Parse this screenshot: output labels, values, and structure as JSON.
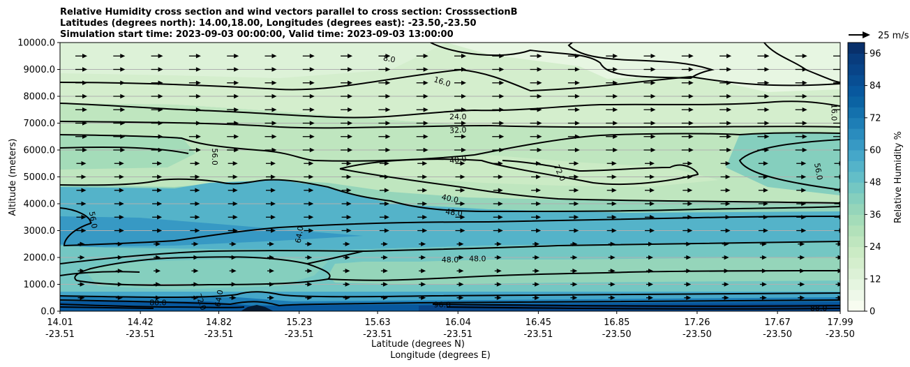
{
  "chart_data": {
    "type": "contour",
    "title_lines": [
      "Relative Humidity cross section and wind vectors parallel to cross section: CrosssectionB",
      "Latitudes (degrees north): 14.00,18.00, Longitudes (degrees east): -23.50,-23.50",
      "Simulation start time: 2023-09-03 00:00:00, Valid time: 2023-09-03 13:00:00"
    ],
    "ylabel": "Altitude (meters)",
    "xlabel_lat": "Latitude (degrees N)",
    "xlabel_lon": "Longitude (degrees E)",
    "ylim": [
      0,
      10000
    ],
    "y_ticks": [
      "0.0",
      "1000.0",
      "2000.0",
      "3000.0",
      "4000.0",
      "5000.0",
      "6000.0",
      "7000.0",
      "8000.0",
      "9000.0",
      "10000.0"
    ],
    "x_range": [
      14.01,
      17.99
    ],
    "x_ticks": [
      {
        "lat": "14.01",
        "lon": "-23.51"
      },
      {
        "lat": "14.42",
        "lon": "-23.51"
      },
      {
        "lat": "14.82",
        "lon": "-23.51"
      },
      {
        "lat": "15.23",
        "lon": "-23.51"
      },
      {
        "lat": "15.63",
        "lon": "-23.51"
      },
      {
        "lat": "16.04",
        "lon": "-23.51"
      },
      {
        "lat": "16.45",
        "lon": "-23.51"
      },
      {
        "lat": "16.85",
        "lon": "-23.50"
      },
      {
        "lat": "17.26",
        "lon": "-23.50"
      },
      {
        "lat": "17.67",
        "lon": "-23.50"
      },
      {
        "lat": "17.99",
        "lon": "-23.50"
      }
    ],
    "colorbar": {
      "label": "Relative Humidity %",
      "min": 0,
      "max": 100,
      "step": 4,
      "ticks": [
        "0",
        "12",
        "24",
        "36",
        "48",
        "60",
        "72",
        "84",
        "96"
      ],
      "colors": [
        "#f7fcf0",
        "#eef8e9",
        "#e5f5e0",
        "#dcf1d6",
        "#d4eecd",
        "#cbebc5",
        "#bfe6bf",
        "#b2e1ba",
        "#a4dcb9",
        "#95d5ba",
        "#85cfbe",
        "#74c7c3",
        "#63bec8",
        "#54b3c9",
        "#45a7c9",
        "#3799c4",
        "#2a8cbe",
        "#1e7eb6",
        "#1471ad",
        "#0b63a3",
        "#08589e",
        "#084e93",
        "#084488",
        "#083c7d",
        "#08306b"
      ]
    },
    "wind_key": "25 m/s",
    "contour_labels": [
      {
        "text": "8.0",
        "x": 15.69,
        "y": 9400,
        "rot": 10
      },
      {
        "text": "16.0",
        "x": 15.96,
        "y": 8550,
        "rot": 18
      },
      {
        "text": "24.0",
        "x": 16.04,
        "y": 7250,
        "rot": 0
      },
      {
        "text": "32.0",
        "x": 16.04,
        "y": 6750,
        "rot": -3
      },
      {
        "text": "40.0",
        "x": 16.04,
        "y": 5650,
        "rot": -8
      },
      {
        "text": "40.0",
        "x": 16.0,
        "y": 4200,
        "rot": 12
      },
      {
        "text": "48.0",
        "x": 16.02,
        "y": 3680,
        "rot": 8
      },
      {
        "text": "48.0",
        "x": 16.0,
        "y": 1920,
        "rot": 0
      },
      {
        "text": "48.0",
        "x": 16.14,
        "y": 1960,
        "rot": 0
      },
      {
        "text": "56.0",
        "x": 14.8,
        "y": 5750,
        "rot": 90
      },
      {
        "text": "56.0",
        "x": 14.18,
        "y": 3400,
        "rot": 80
      },
      {
        "text": "56.0",
        "x": 17.88,
        "y": 5200,
        "rot": 80
      },
      {
        "text": "64.0",
        "x": 15.23,
        "y": 2850,
        "rot": -80
      },
      {
        "text": "72.0",
        "x": 16.56,
        "y": 5150,
        "rot": 65
      },
      {
        "text": "16.0",
        "x": 17.96,
        "y": 7400,
        "rot": 90
      },
      {
        "text": "80.0",
        "x": 14.51,
        "y": 330,
        "rot": 0
      },
      {
        "text": "72.0",
        "x": 14.73,
        "y": 350,
        "rot": 70
      },
      {
        "text": "64.0",
        "x": 14.82,
        "y": 480,
        "rot": -80
      },
      {
        "text": "88.0",
        "x": 17.88,
        "y": 120,
        "rot": 0
      },
      {
        "text": "96.0",
        "x": 15.96,
        "y": 250,
        "rot": 0
      }
    ]
  }
}
